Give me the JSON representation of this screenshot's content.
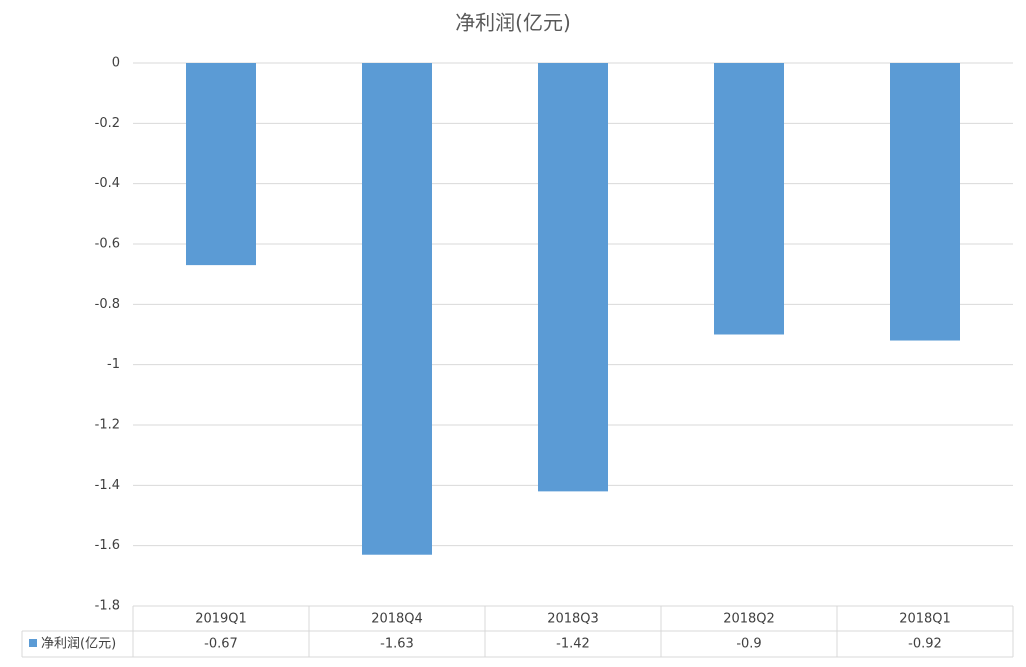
{
  "chart_data": {
    "type": "bar",
    "title": "净利润(亿元)",
    "categories": [
      "2019Q1",
      "2018Q4",
      "2018Q3",
      "2018Q2",
      "2018Q1"
    ],
    "series": [
      {
        "name": "净利润(亿元)",
        "color": "#5b9bd5",
        "values": [
          -0.67,
          -1.63,
          -1.42,
          -0.9,
          -0.92
        ]
      }
    ],
    "ylim": [
      -1.8,
      0
    ],
    "yticks": [
      0,
      -0.2,
      -0.4,
      -0.6,
      -0.8,
      -1,
      -1.2,
      -1.4,
      -1.6,
      -1.8
    ],
    "grid": true
  }
}
